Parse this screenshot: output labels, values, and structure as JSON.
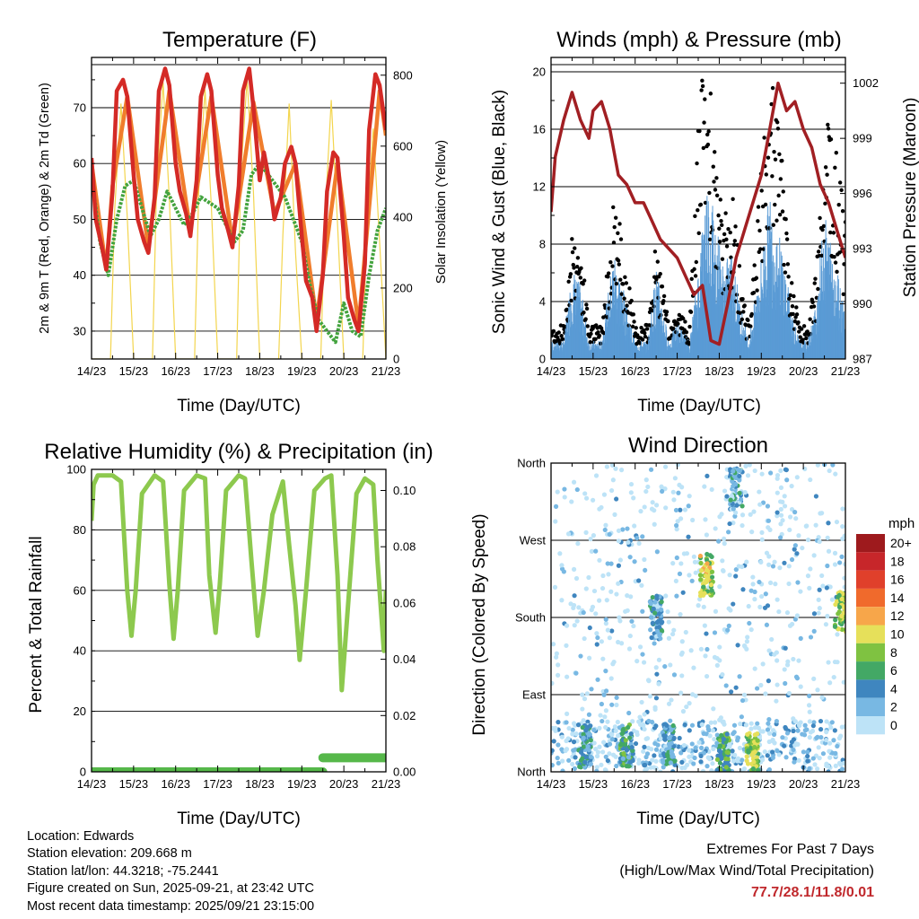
{
  "panels": {
    "temperature": {
      "title": "Temperature (F)",
      "xlabel": "Time (Day/UTC)",
      "ylabel_left": "2m & 9m T (Red, Orange) & 2m Td (Green)",
      "ylabel_right": "Solar Insolation (Yellow)"
    },
    "winds": {
      "title": "Winds (mph) & Pressure (mb)",
      "xlabel": "Time (Day/UTC)",
      "ylabel_left": "Sonic Wind & Gust (Blue, Black)",
      "ylabel_right": "Station Pressure (Maroon)"
    },
    "humidity": {
      "title": "Relative Humidity (%) & Precipitation (in)",
      "xlabel": "Time (Day/UTC)",
      "ylabel_left": "Percent & Total Rainfall"
    },
    "direction": {
      "title": "Wind Direction",
      "xlabel": "Time (Day/UTC)",
      "ylabel_left": "Direction (Colored By Speed)"
    }
  },
  "legend": {
    "title": "mph",
    "levels": [
      "20+",
      "18",
      "16",
      "14",
      "12",
      "10",
      "8",
      "6",
      "4",
      "2",
      "0"
    ],
    "colors": [
      "#9e1a1d",
      "#c7262a",
      "#e0402b",
      "#f06a2c",
      "#f7a64a",
      "#e6e05a",
      "#7fc241",
      "#43a865",
      "#3f86bf",
      "#78b8e3",
      "#bde3f7"
    ]
  },
  "footer": {
    "location": "Location: Edwards",
    "elevation": "Station elevation: 209.668 m",
    "latlon": "Station lat/lon: 44.3218; -75.2441",
    "created": "Figure created on Sun, 2025-09-21, at 23:42 UTC",
    "recent": "Most recent data timestamp: 2025/09/21 23:15:00",
    "extremes_title": "Extremes For Past 7 Days",
    "extremes_legend": "(High/Low/Max Wind/Total Precipitation)",
    "extremes_values": "77.7/28.1/11.8/0.01"
  },
  "chart_data": [
    {
      "type": "line",
      "title": "Temperature (F)",
      "xlabel": "Time (Day/UTC)",
      "x_ticks": [
        "14/23",
        "15/23",
        "16/23",
        "17/23",
        "18/23",
        "19/23",
        "20/23",
        "21/23"
      ],
      "ylim": [
        25,
        79
      ],
      "y_ticks": [
        "30",
        "40",
        "50",
        "60",
        "70"
      ],
      "y_tick_values": [
        30,
        40,
        50,
        60,
        70
      ],
      "y2lim": [
        0,
        850
      ],
      "y2_ticks": [
        "0",
        "200",
        "400",
        "600",
        "800"
      ],
      "y2_tick_values": [
        0,
        200,
        400,
        600,
        800
      ],
      "series": [
        {
          "name": "2m T",
          "color": "#d42a26",
          "axis": "left",
          "x": [
            0,
            0.1,
            0.25,
            0.35,
            0.5,
            0.6,
            0.75,
            0.85,
            1.0,
            1.1,
            1.25,
            1.35,
            1.5,
            1.6,
            1.75,
            1.85,
            2.0,
            2.1,
            2.25,
            2.35,
            2.5,
            2.6,
            2.75,
            2.85,
            3.0,
            3.1,
            3.25,
            3.35,
            3.5,
            3.6,
            3.75,
            3.85,
            4.0,
            4.1,
            4.25,
            4.35,
            4.5,
            4.6,
            4.75,
            4.85,
            5.0,
            5.1,
            5.25,
            5.35,
            5.5,
            5.6,
            5.75,
            5.85,
            6.0,
            6.1,
            6.25,
            6.35,
            6.5,
            6.6,
            6.75,
            6.85,
            7.0
          ],
          "y": [
            61,
            50,
            45,
            41,
            55,
            73,
            75,
            72,
            58,
            50,
            46,
            44,
            54,
            73,
            77,
            74,
            60,
            55,
            51,
            47,
            57,
            72,
            76,
            73,
            58,
            52,
            48,
            45,
            56,
            73,
            77,
            70,
            57,
            62,
            56,
            50,
            54,
            60,
            63,
            60,
            47,
            39,
            36,
            30,
            40,
            55,
            62,
            61,
            47,
            36,
            32,
            30,
            42,
            66,
            76,
            74,
            66
          ]
        },
        {
          "name": "9m T",
          "color": "#f07d2c",
          "axis": "left",
          "x": [
            0,
            0.35,
            0.5,
            0.85,
            1.35,
            1.85,
            2.35,
            2.85,
            3.35,
            3.85,
            4.35,
            4.85,
            5.35,
            5.85,
            6.35,
            6.85,
            7.0
          ],
          "y": [
            60,
            41,
            56,
            72,
            45,
            73,
            48,
            72,
            46,
            71,
            51,
            60,
            32,
            60,
            31,
            73,
            65
          ]
        },
        {
          "name": "2m Td",
          "color": "#43a33e",
          "axis": "left",
          "x": [
            0,
            0.2,
            0.4,
            0.6,
            0.8,
            1.0,
            1.2,
            1.4,
            1.6,
            1.8,
            2.0,
            2.2,
            2.4,
            2.6,
            2.8,
            3.0,
            3.2,
            3.4,
            3.6,
            3.8,
            4.0,
            4.2,
            4.4,
            4.6,
            4.8,
            5.0,
            5.2,
            5.4,
            5.6,
            5.8,
            6.0,
            6.2,
            6.4,
            6.6,
            6.8,
            7.0
          ],
          "y": [
            58,
            46,
            40,
            50,
            56,
            57,
            52,
            47,
            50,
            55,
            52,
            49,
            51,
            54,
            53,
            52,
            49,
            46,
            48,
            58,
            60,
            58,
            56,
            54,
            50,
            46,
            38,
            32,
            30,
            28,
            35,
            30,
            29,
            40,
            48,
            52
          ]
        },
        {
          "name": "Solar Insolation",
          "color": "#f3d54e",
          "axis": "right",
          "x": [
            0,
            0.45,
            0.55,
            0.7,
            0.85,
            1.0,
            1.45,
            1.55,
            1.7,
            1.85,
            2.0,
            2.45,
            2.55,
            2.7,
            2.85,
            3.0,
            3.45,
            3.55,
            3.7,
            3.85,
            4.0,
            4.45,
            4.55,
            4.7,
            4.85,
            5.0,
            5.45,
            5.55,
            5.7,
            5.85,
            6.0,
            6.45,
            6.55,
            6.7,
            6.85,
            7.0
          ],
          "y": [
            0,
            0,
            420,
            720,
            400,
            0,
            0,
            500,
            780,
            450,
            0,
            0,
            480,
            760,
            430,
            0,
            0,
            520,
            790,
            470,
            0,
            0,
            350,
            720,
            300,
            0,
            0,
            400,
            730,
            380,
            0,
            0,
            390,
            650,
            330,
            0
          ]
        }
      ]
    },
    {
      "type": "line",
      "title": "Winds (mph) & Pressure (mb)",
      "xlabel": "Time (Day/UTC)",
      "x_ticks": [
        "14/23",
        "15/23",
        "16/23",
        "17/23",
        "18/23",
        "19/23",
        "20/23",
        "21/23"
      ],
      "ylim": [
        0,
        21
      ],
      "y_ticks": [
        "0",
        "4",
        "8",
        "12",
        "16",
        "20"
      ],
      "y_tick_values": [
        0,
        4,
        8,
        12,
        16,
        20
      ],
      "y2lim": [
        987,
        1003.4
      ],
      "y2_ticks": [
        "987",
        "990",
        "993",
        "996",
        "999",
        "1002"
      ],
      "y2_tick_values": [
        987,
        990,
        993,
        996,
        999,
        1002
      ],
      "series": [
        {
          "name": "Sonic Wind",
          "color": "#5a9bd5",
          "axis": "left",
          "x": [
            0,
            0.3,
            0.5,
            0.7,
            0.9,
            1.2,
            1.5,
            1.7,
            2.0,
            2.3,
            2.5,
            2.8,
            3.0,
            3.3,
            3.5,
            3.7,
            3.9,
            4.1,
            4.3,
            4.5,
            4.7,
            4.9,
            5.2,
            5.5,
            5.7,
            5.9,
            6.1,
            6.3,
            6.5,
            6.7,
            6.9,
            7.0
          ],
          "y": [
            1,
            1,
            5,
            4,
            1,
            1,
            6,
            4,
            1,
            1,
            5,
            1,
            2,
            1,
            5,
            10,
            8,
            5,
            6,
            3,
            1,
            4,
            9,
            6,
            3,
            1,
            1,
            3,
            8,
            6,
            4,
            3
          ]
        },
        {
          "name": "Gust",
          "color": "#000000",
          "axis": "left",
          "x": [
            0,
            0.3,
            0.5,
            0.7,
            0.9,
            1.2,
            1.5,
            1.7,
            2.0,
            2.3,
            2.5,
            2.8,
            3.0,
            3.3,
            3.5,
            3.7,
            3.9,
            4.1,
            4.3,
            4.5,
            4.7,
            4.9,
            5.2,
            5.5,
            5.7,
            5.9,
            6.1,
            6.3,
            6.5,
            6.7,
            6.9,
            7.0
          ],
          "y": [
            2,
            2,
            8,
            7,
            2,
            2,
            10,
            7,
            2,
            2,
            7,
            2,
            3,
            2,
            14,
            19,
            12,
            8,
            10,
            5,
            2,
            8,
            17,
            12,
            5,
            2,
            2,
            5,
            16,
            14,
            10,
            8
          ]
        },
        {
          "name": "Station Pressure",
          "color": "#a11f23",
          "axis": "right",
          "x": [
            0,
            0.1,
            0.3,
            0.5,
            0.7,
            0.9,
            1.0,
            1.2,
            1.4,
            1.6,
            1.8,
            2.0,
            2.2,
            2.4,
            2.6,
            2.8,
            3.0,
            3.2,
            3.4,
            3.6,
            3.8,
            4.0,
            4.2,
            4.4,
            4.6,
            4.8,
            5.0,
            5.2,
            5.4,
            5.6,
            5.8,
            6.0,
            6.2,
            6.4,
            6.6,
            6.8,
            7.0
          ],
          "y": [
            995,
            998,
            1000,
            1001.5,
            1000,
            999,
            1000.5,
            1001,
            999.5,
            997,
            996.5,
            995.5,
            995.5,
            994.5,
            993.5,
            993,
            992.5,
            991.5,
            990.5,
            991,
            988,
            987.8,
            990,
            992.5,
            994,
            995.5,
            997,
            999.5,
            1002,
            1000.5,
            1001,
            999.5,
            998.5,
            996.5,
            995.5,
            994,
            992.5
          ]
        }
      ]
    },
    {
      "type": "line",
      "title": "Relative Humidity (%) & Precipitation (in)",
      "xlabel": "Time (Day/UTC)",
      "x_ticks": [
        "14/23",
        "15/23",
        "16/23",
        "17/23",
        "18/23",
        "19/23",
        "20/23",
        "21/23"
      ],
      "ylim": [
        0,
        100
      ],
      "y_ticks": [
        "0",
        "20",
        "40",
        "60",
        "80",
        "100"
      ],
      "y_tick_values": [
        0,
        20,
        40,
        60,
        80,
        100
      ],
      "y2lim": [
        0,
        0.1075
      ],
      "y2_ticks": [
        "0.00",
        "0.02",
        "0.04",
        "0.06",
        "0.08",
        "0.10"
      ],
      "y2_tick_values": [
        0,
        0.02,
        0.04,
        0.06,
        0.08,
        0.1
      ],
      "series": [
        {
          "name": "Relative Humidity",
          "color": "#8dc94e",
          "axis": "left",
          "x": [
            0,
            0.05,
            0.15,
            0.5,
            0.7,
            0.85,
            0.95,
            1.05,
            1.2,
            1.5,
            1.7,
            1.85,
            1.95,
            2.05,
            2.2,
            2.5,
            2.7,
            2.8,
            2.95,
            3.05,
            3.2,
            3.5,
            3.65,
            3.8,
            3.95,
            4.1,
            4.3,
            4.55,
            4.7,
            4.85,
            4.95,
            5.1,
            5.3,
            5.55,
            5.7,
            5.85,
            5.95,
            6.1,
            6.3,
            6.5,
            6.7,
            6.8,
            6.95,
            7.0
          ],
          "y": [
            83,
            95,
            98,
            98,
            96,
            60,
            45,
            60,
            92,
            98,
            96,
            62,
            44,
            60,
            93,
            98,
            97,
            65,
            46,
            62,
            93,
            98,
            97,
            70,
            45,
            60,
            85,
            96,
            75,
            55,
            37,
            60,
            93,
            97,
            98,
            65,
            27,
            55,
            92,
            97,
            95,
            70,
            40,
            60
          ]
        },
        {
          "name": "Total Precipitation",
          "color": "#56b84a",
          "axis": "right",
          "x": [
            0,
            5.5,
            5.51,
            7.0
          ],
          "y": [
            0,
            0,
            0.005,
            0.005
          ]
        }
      ]
    },
    {
      "type": "scatter",
      "title": "Wind Direction",
      "xlabel": "Time (Day/UTC)",
      "x_ticks": [
        "14/23",
        "15/23",
        "16/23",
        "17/23",
        "18/23",
        "19/23",
        "20/23",
        "21/23"
      ],
      "y_ticks": [
        "North",
        "East",
        "South",
        "West",
        "North"
      ],
      "y_tick_values": [
        0,
        90,
        180,
        270,
        360
      ],
      "ylim": [
        0,
        360
      ],
      "clusters": [
        {
          "day": 0.8,
          "dir": 30,
          "speed": 4
        },
        {
          "day": 1.8,
          "dir": 30,
          "speed": 5
        },
        {
          "day": 2.8,
          "dir": 30,
          "speed": 4
        },
        {
          "day": 3.7,
          "dir": 230,
          "speed": 9
        },
        {
          "day": 4.1,
          "dir": 20,
          "speed": 6
        },
        {
          "day": 4.8,
          "dir": 20,
          "speed": 8
        },
        {
          "day": 6.9,
          "dir": 185,
          "speed": 8
        },
        {
          "day": 4.4,
          "dir": 330,
          "speed": 3
        },
        {
          "day": 2.5,
          "dir": 180,
          "speed": 3
        }
      ]
    }
  ]
}
